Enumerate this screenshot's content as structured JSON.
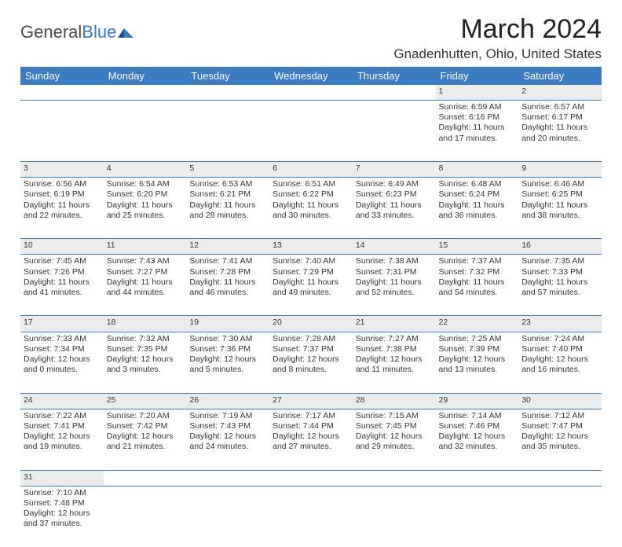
{
  "logo": {
    "text1": "General",
    "text2": "Blue"
  },
  "title": "March 2024",
  "location": "Gnadenhutten, Ohio, United States",
  "colors": {
    "header_bg": "#3b7bbf",
    "header_fg": "#ffffff",
    "daynum_bg": "#ececec",
    "border": "#3b7bbf",
    "text": "#333333"
  },
  "style": {
    "title_fontsize": 34,
    "location_fontsize": 17,
    "header_fontsize": 13,
    "cell_fontsize": 10.5,
    "column_count": 7
  },
  "weekdays": [
    "Sunday",
    "Monday",
    "Tuesday",
    "Wednesday",
    "Thursday",
    "Friday",
    "Saturday"
  ],
  "weeks": [
    {
      "nums": [
        "",
        "",
        "",
        "",
        "",
        "1",
        "2"
      ],
      "cells": [
        {
          "empty": true
        },
        {
          "empty": true
        },
        {
          "empty": true
        },
        {
          "empty": true
        },
        {
          "empty": true
        },
        {
          "sunrise": "Sunrise: 6:59 AM",
          "sunset": "Sunset: 6:16 PM",
          "daylight": "Daylight: 11 hours and 17 minutes."
        },
        {
          "sunrise": "Sunrise: 6:57 AM",
          "sunset": "Sunset: 6:17 PM",
          "daylight": "Daylight: 11 hours and 20 minutes."
        }
      ]
    },
    {
      "nums": [
        "3",
        "4",
        "5",
        "6",
        "7",
        "8",
        "9"
      ],
      "cells": [
        {
          "sunrise": "Sunrise: 6:56 AM",
          "sunset": "Sunset: 6:19 PM",
          "daylight": "Daylight: 11 hours and 22 minutes."
        },
        {
          "sunrise": "Sunrise: 6:54 AM",
          "sunset": "Sunset: 6:20 PM",
          "daylight": "Daylight: 11 hours and 25 minutes."
        },
        {
          "sunrise": "Sunrise: 6:53 AM",
          "sunset": "Sunset: 6:21 PM",
          "daylight": "Daylight: 11 hours and 28 minutes."
        },
        {
          "sunrise": "Sunrise: 6:51 AM",
          "sunset": "Sunset: 6:22 PM",
          "daylight": "Daylight: 11 hours and 30 minutes."
        },
        {
          "sunrise": "Sunrise: 6:49 AM",
          "sunset": "Sunset: 6:23 PM",
          "daylight": "Daylight: 11 hours and 33 minutes."
        },
        {
          "sunrise": "Sunrise: 6:48 AM",
          "sunset": "Sunset: 6:24 PM",
          "daylight": "Daylight: 11 hours and 36 minutes."
        },
        {
          "sunrise": "Sunrise: 6:46 AM",
          "sunset": "Sunset: 6:25 PM",
          "daylight": "Daylight: 11 hours and 38 minutes."
        }
      ]
    },
    {
      "nums": [
        "10",
        "11",
        "12",
        "13",
        "14",
        "15",
        "16"
      ],
      "cells": [
        {
          "sunrise": "Sunrise: 7:45 AM",
          "sunset": "Sunset: 7:26 PM",
          "daylight": "Daylight: 11 hours and 41 minutes."
        },
        {
          "sunrise": "Sunrise: 7:43 AM",
          "sunset": "Sunset: 7:27 PM",
          "daylight": "Daylight: 11 hours and 44 minutes."
        },
        {
          "sunrise": "Sunrise: 7:41 AM",
          "sunset": "Sunset: 7:28 PM",
          "daylight": "Daylight: 11 hours and 46 minutes."
        },
        {
          "sunrise": "Sunrise: 7:40 AM",
          "sunset": "Sunset: 7:29 PM",
          "daylight": "Daylight: 11 hours and 49 minutes."
        },
        {
          "sunrise": "Sunrise: 7:38 AM",
          "sunset": "Sunset: 7:31 PM",
          "daylight": "Daylight: 11 hours and 52 minutes."
        },
        {
          "sunrise": "Sunrise: 7:37 AM",
          "sunset": "Sunset: 7:32 PM",
          "daylight": "Daylight: 11 hours and 54 minutes."
        },
        {
          "sunrise": "Sunrise: 7:35 AM",
          "sunset": "Sunset: 7:33 PM",
          "daylight": "Daylight: 11 hours and 57 minutes."
        }
      ]
    },
    {
      "nums": [
        "17",
        "18",
        "19",
        "20",
        "21",
        "22",
        "23"
      ],
      "cells": [
        {
          "sunrise": "Sunrise: 7:33 AM",
          "sunset": "Sunset: 7:34 PM",
          "daylight": "Daylight: 12 hours and 0 minutes."
        },
        {
          "sunrise": "Sunrise: 7:32 AM",
          "sunset": "Sunset: 7:35 PM",
          "daylight": "Daylight: 12 hours and 3 minutes."
        },
        {
          "sunrise": "Sunrise: 7:30 AM",
          "sunset": "Sunset: 7:36 PM",
          "daylight": "Daylight: 12 hours and 5 minutes."
        },
        {
          "sunrise": "Sunrise: 7:28 AM",
          "sunset": "Sunset: 7:37 PM",
          "daylight": "Daylight: 12 hours and 8 minutes."
        },
        {
          "sunrise": "Sunrise: 7:27 AM",
          "sunset": "Sunset: 7:38 PM",
          "daylight": "Daylight: 12 hours and 11 minutes."
        },
        {
          "sunrise": "Sunrise: 7:25 AM",
          "sunset": "Sunset: 7:39 PM",
          "daylight": "Daylight: 12 hours and 13 minutes."
        },
        {
          "sunrise": "Sunrise: 7:24 AM",
          "sunset": "Sunset: 7:40 PM",
          "daylight": "Daylight: 12 hours and 16 minutes."
        }
      ]
    },
    {
      "nums": [
        "24",
        "25",
        "26",
        "27",
        "28",
        "29",
        "30"
      ],
      "cells": [
        {
          "sunrise": "Sunrise: 7:22 AM",
          "sunset": "Sunset: 7:41 PM",
          "daylight": "Daylight: 12 hours and 19 minutes."
        },
        {
          "sunrise": "Sunrise: 7:20 AM",
          "sunset": "Sunset: 7:42 PM",
          "daylight": "Daylight: 12 hours and 21 minutes."
        },
        {
          "sunrise": "Sunrise: 7:19 AM",
          "sunset": "Sunset: 7:43 PM",
          "daylight": "Daylight: 12 hours and 24 minutes."
        },
        {
          "sunrise": "Sunrise: 7:17 AM",
          "sunset": "Sunset: 7:44 PM",
          "daylight": "Daylight: 12 hours and 27 minutes."
        },
        {
          "sunrise": "Sunrise: 7:15 AM",
          "sunset": "Sunset: 7:45 PM",
          "daylight": "Daylight: 12 hours and 29 minutes."
        },
        {
          "sunrise": "Sunrise: 7:14 AM",
          "sunset": "Sunset: 7:46 PM",
          "daylight": "Daylight: 12 hours and 32 minutes."
        },
        {
          "sunrise": "Sunrise: 7:12 AM",
          "sunset": "Sunset: 7:47 PM",
          "daylight": "Daylight: 12 hours and 35 minutes."
        }
      ]
    },
    {
      "nums": [
        "31",
        "",
        "",
        "",
        "",
        "",
        ""
      ],
      "cells": [
        {
          "sunrise": "Sunrise: 7:10 AM",
          "sunset": "Sunset: 7:48 PM",
          "daylight": "Daylight: 12 hours and 37 minutes."
        },
        {
          "empty": true
        },
        {
          "empty": true
        },
        {
          "empty": true
        },
        {
          "empty": true
        },
        {
          "empty": true
        },
        {
          "empty": true
        }
      ]
    }
  ]
}
